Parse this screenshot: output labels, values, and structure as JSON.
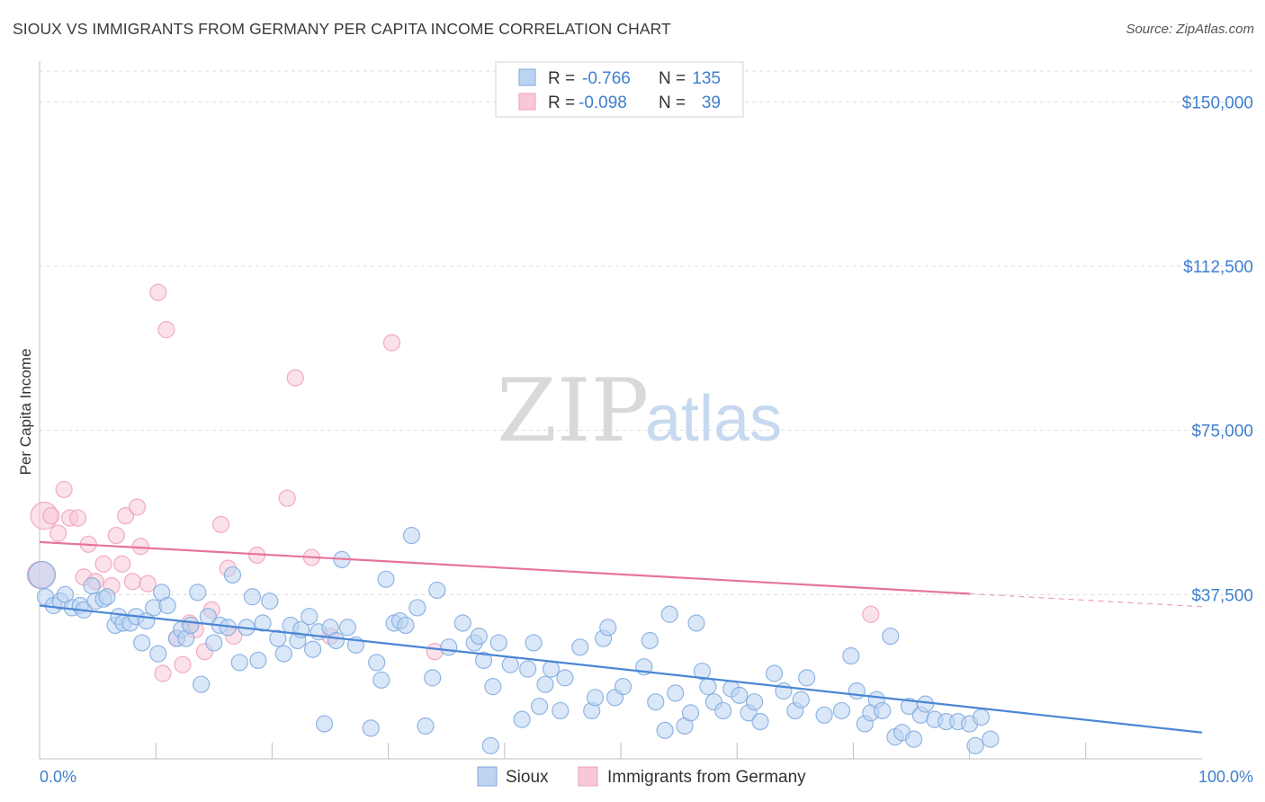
{
  "header": {
    "title": "SIOUX VS IMMIGRANTS FROM GERMANY PER CAPITA INCOME CORRELATION CHART",
    "source": "Source: ZipAtlas.com"
  },
  "watermark": {
    "part1": "ZIP",
    "part2": "atlas"
  },
  "legend_box": {
    "rows": [
      {
        "r_label": "R =",
        "r_value": "-0.766",
        "n_label": "N =",
        "n_value": "135",
        "color": "#9cc1ef"
      },
      {
        "r_label": "R =",
        "r_value": "-0.098",
        "n_label": "N =",
        "n_value": "39",
        "color": "#f5b8c9"
      }
    ]
  },
  "bottom_legend": [
    {
      "label": "Sioux",
      "color": "#9cc1ef"
    },
    {
      "label": "Immigrants from Germany",
      "color": "#f5b8c9"
    }
  ],
  "chart_data": {
    "type": "scatter",
    "ylabel": "Per Capita Income",
    "xlim": [
      0,
      100
    ],
    "ylim": [
      0,
      150000
    ],
    "x_tick_labels": [
      "0.0%",
      "100.0%"
    ],
    "y_ticks": [
      37500,
      75000,
      112500,
      150000
    ],
    "y_tick_labels": [
      "$37,500",
      "$75,000",
      "$112,500",
      "$150,000"
    ],
    "grid": true,
    "colors": {
      "sioux": "#4a86d4",
      "sioux_fill": "#bcd4f2",
      "germany": "#e7739b",
      "germany_fill": "#f8c8d6"
    },
    "series": [
      {
        "name": "Sioux",
        "trend": {
          "x": [
            0,
            100
          ],
          "y": [
            35000,
            6000
          ]
        },
        "points": [
          [
            0.2,
            42000
          ],
          [
            0.5,
            37000
          ],
          [
            1.2,
            35000
          ],
          [
            1.8,
            36000
          ],
          [
            2.2,
            37500
          ],
          [
            2.8,
            34500
          ],
          [
            3.5,
            35000
          ],
          [
            3.8,
            34000
          ],
          [
            4.5,
            39500
          ],
          [
            4.8,
            36000
          ],
          [
            5.5,
            36500
          ],
          [
            5.8,
            37000
          ],
          [
            6.5,
            30500
          ],
          [
            6.8,
            32500
          ],
          [
            7.2,
            31000
          ],
          [
            7.8,
            31000
          ],
          [
            8.3,
            32500
          ],
          [
            8.8,
            26500
          ],
          [
            9.2,
            31500
          ],
          [
            9.8,
            34500
          ],
          [
            10.2,
            24000
          ],
          [
            10.5,
            38000
          ],
          [
            11.0,
            35000
          ],
          [
            11.8,
            27500
          ],
          [
            12.2,
            29500
          ],
          [
            12.6,
            27500
          ],
          [
            13.0,
            30500
          ],
          [
            13.6,
            38000
          ],
          [
            13.9,
            17000
          ],
          [
            14.5,
            32500
          ],
          [
            15.0,
            26500
          ],
          [
            15.5,
            30500
          ],
          [
            16.2,
            30000
          ],
          [
            16.6,
            42000
          ],
          [
            17.2,
            22000
          ],
          [
            17.8,
            30000
          ],
          [
            18.3,
            37000
          ],
          [
            18.8,
            22500
          ],
          [
            19.2,
            31000
          ],
          [
            19.8,
            36000
          ],
          [
            20.5,
            27500
          ],
          [
            21.0,
            24000
          ],
          [
            21.6,
            30500
          ],
          [
            22.2,
            27000
          ],
          [
            22.5,
            29500
          ],
          [
            23.2,
            32500
          ],
          [
            23.5,
            25000
          ],
          [
            24.0,
            29000
          ],
          [
            24.5,
            8000
          ],
          [
            25.0,
            30000
          ],
          [
            25.5,
            27000
          ],
          [
            26.0,
            45500
          ],
          [
            26.5,
            30000
          ],
          [
            27.2,
            26000
          ],
          [
            28.5,
            7000
          ],
          [
            29.0,
            22000
          ],
          [
            29.4,
            18000
          ],
          [
            29.8,
            41000
          ],
          [
            30.5,
            31000
          ],
          [
            31.0,
            31500
          ],
          [
            31.5,
            30500
          ],
          [
            32.0,
            51000
          ],
          [
            32.5,
            34500
          ],
          [
            33.2,
            7500
          ],
          [
            33.8,
            18500
          ],
          [
            34.2,
            38500
          ],
          [
            35.2,
            25500
          ],
          [
            36.4,
            31000
          ],
          [
            37.4,
            26500
          ],
          [
            37.8,
            28000
          ],
          [
            38.2,
            22500
          ],
          [
            38.8,
            3000
          ],
          [
            39.0,
            16500
          ],
          [
            39.5,
            26500
          ],
          [
            40.5,
            21500
          ],
          [
            41.5,
            9000
          ],
          [
            42.0,
            20500
          ],
          [
            42.5,
            26500
          ],
          [
            43.0,
            12000
          ],
          [
            43.5,
            17000
          ],
          [
            44.0,
            20500
          ],
          [
            44.8,
            11000
          ],
          [
            45.2,
            18500
          ],
          [
            46.5,
            25500
          ],
          [
            47.5,
            11000
          ],
          [
            47.8,
            14000
          ],
          [
            48.5,
            27500
          ],
          [
            48.9,
            30000
          ],
          [
            49.5,
            14000
          ],
          [
            50.2,
            16500
          ],
          [
            52.0,
            21000
          ],
          [
            52.5,
            27000
          ],
          [
            53.0,
            13000
          ],
          [
            53.8,
            6500
          ],
          [
            54.2,
            33000
          ],
          [
            54.7,
            15000
          ],
          [
            55.5,
            7500
          ],
          [
            56.0,
            10500
          ],
          [
            56.5,
            31000
          ],
          [
            57.0,
            20000
          ],
          [
            57.5,
            16500
          ],
          [
            58.0,
            13000
          ],
          [
            58.8,
            11000
          ],
          [
            59.5,
            16000
          ],
          [
            60.2,
            14500
          ],
          [
            61.0,
            10500
          ],
          [
            61.5,
            13000
          ],
          [
            62.0,
            8500
          ],
          [
            63.2,
            19500
          ],
          [
            64.0,
            15500
          ],
          [
            65.0,
            11000
          ],
          [
            65.5,
            13500
          ],
          [
            66.0,
            18500
          ],
          [
            67.5,
            10000
          ],
          [
            69.0,
            11000
          ],
          [
            69.8,
            23500
          ],
          [
            70.3,
            15500
          ],
          [
            71.0,
            8000
          ],
          [
            71.5,
            10500
          ],
          [
            72.0,
            13500
          ],
          [
            72.5,
            11000
          ],
          [
            73.2,
            28000
          ],
          [
            73.6,
            5000
          ],
          [
            74.2,
            6000
          ],
          [
            74.8,
            12000
          ],
          [
            75.2,
            4500
          ],
          [
            75.8,
            10000
          ],
          [
            76.2,
            12500
          ],
          [
            77.0,
            9000
          ],
          [
            78.0,
            8500
          ],
          [
            79.0,
            8500
          ],
          [
            80.0,
            8000
          ],
          [
            80.5,
            3000
          ],
          [
            81.0,
            9500
          ],
          [
            81.8,
            4500
          ]
        ]
      },
      {
        "name": "Immigrants from Germany",
        "trend": {
          "x": [
            0,
            80
          ],
          "y": [
            49500,
            37700
          ]
        },
        "trend_dashed_x": [
          80,
          100
        ],
        "points": [
          [
            0.1,
            42000
          ],
          [
            0.4,
            55500
          ],
          [
            1.0,
            55500
          ],
          [
            1.6,
            51500
          ],
          [
            2.1,
            61500
          ],
          [
            2.6,
            55000
          ],
          [
            3.3,
            55000
          ],
          [
            3.8,
            41500
          ],
          [
            4.2,
            49000
          ],
          [
            4.8,
            40500
          ],
          [
            5.5,
            44500
          ],
          [
            6.2,
            39500
          ],
          [
            6.6,
            51000
          ],
          [
            7.1,
            44500
          ],
          [
            7.4,
            55500
          ],
          [
            8.0,
            40500
          ],
          [
            8.4,
            57500
          ],
          [
            8.7,
            48500
          ],
          [
            9.3,
            40000
          ],
          [
            10.2,
            106500
          ],
          [
            10.6,
            19500
          ],
          [
            10.9,
            98000
          ],
          [
            11.8,
            27500
          ],
          [
            12.3,
            21500
          ],
          [
            12.9,
            31000
          ],
          [
            13.4,
            29500
          ],
          [
            14.2,
            24500
          ],
          [
            14.8,
            34000
          ],
          [
            15.6,
            53500
          ],
          [
            16.2,
            43500
          ],
          [
            16.7,
            28000
          ],
          [
            18.7,
            46500
          ],
          [
            21.3,
            59500
          ],
          [
            22.0,
            87000
          ],
          [
            23.4,
            46000
          ],
          [
            25.0,
            28000
          ],
          [
            30.3,
            95000
          ],
          [
            34.0,
            24500
          ],
          [
            71.5,
            33000
          ]
        ]
      }
    ]
  }
}
